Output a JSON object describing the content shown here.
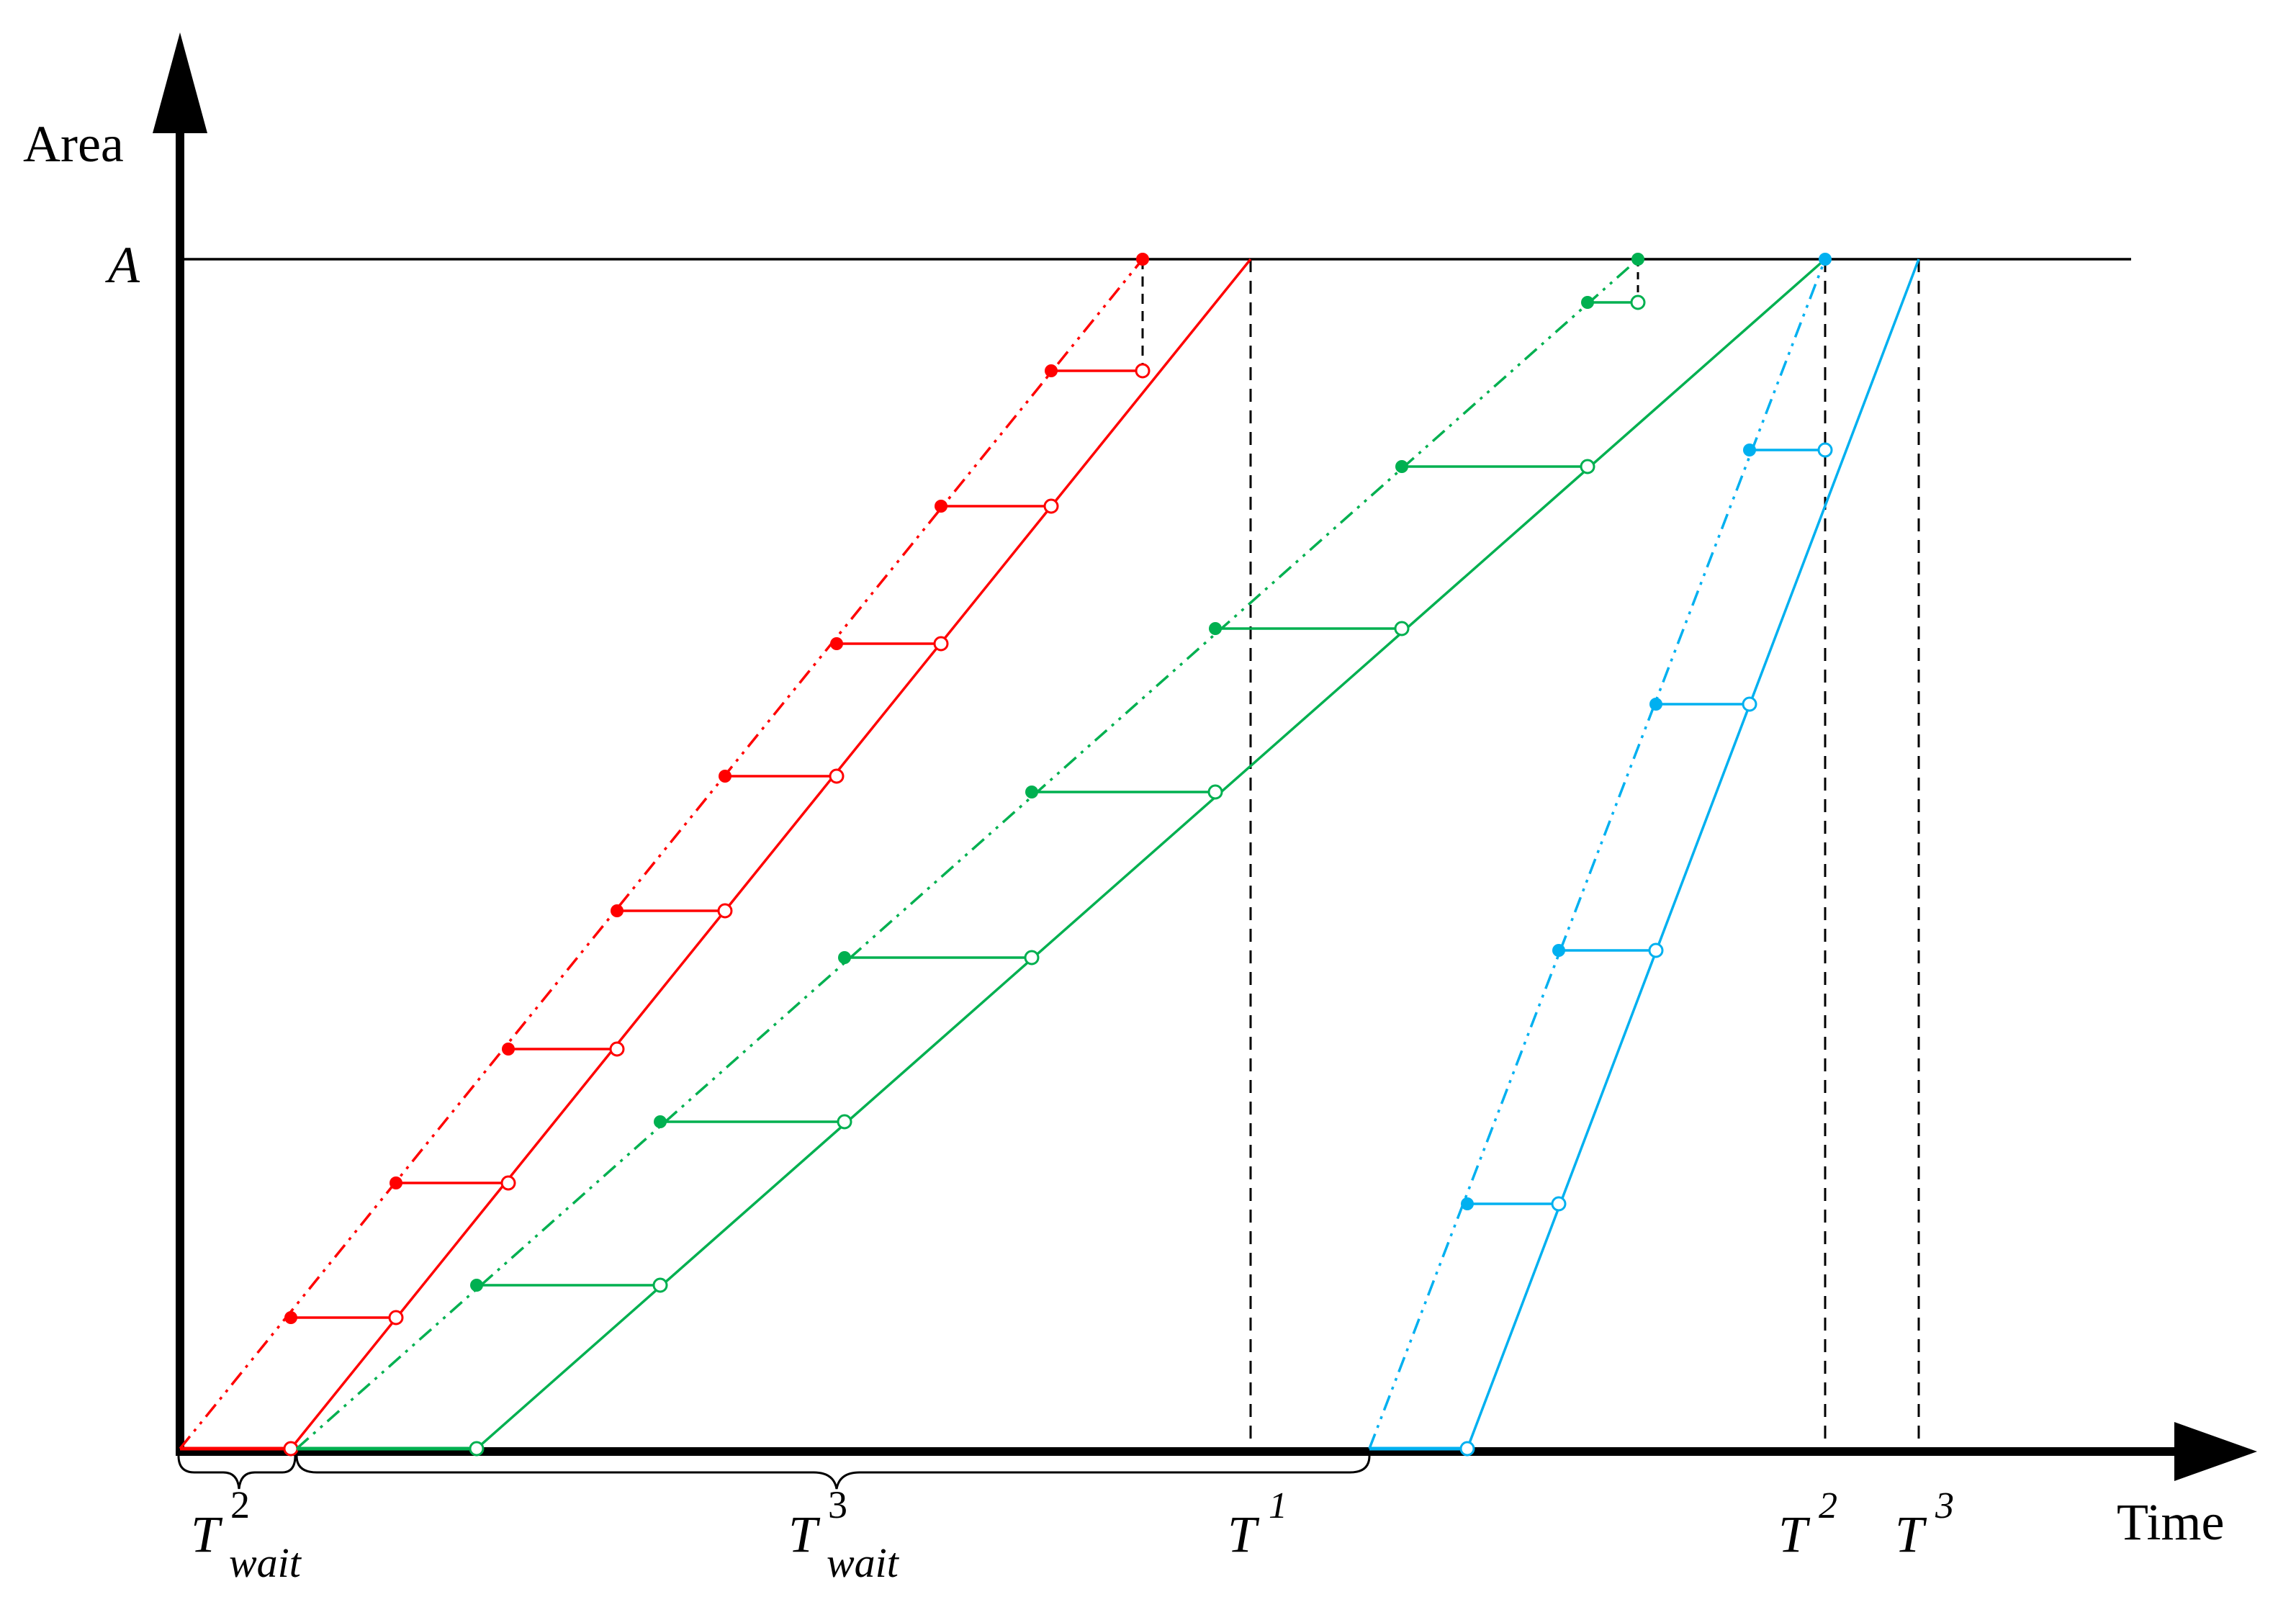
{
  "diagram": {
    "y_axis_label": "Area",
    "x_axis_label": "Time",
    "level_label": "A",
    "labels": {
      "t_wait_2": {
        "main": "T",
        "sup": "2",
        "sub": "wait"
      },
      "t_wait_3": {
        "main": "T",
        "sup": "3",
        "sub": "wait"
      },
      "t1": {
        "main": "T",
        "sup": "1"
      },
      "t2": {
        "main": "T",
        "sup": "2"
      },
      "t3": {
        "main": "T",
        "sup": "3"
      }
    },
    "colors": {
      "series_1": "#ff0000",
      "series_2": "#00b050",
      "series_3": "#00b0f0",
      "axis": "#000000"
    }
  }
}
